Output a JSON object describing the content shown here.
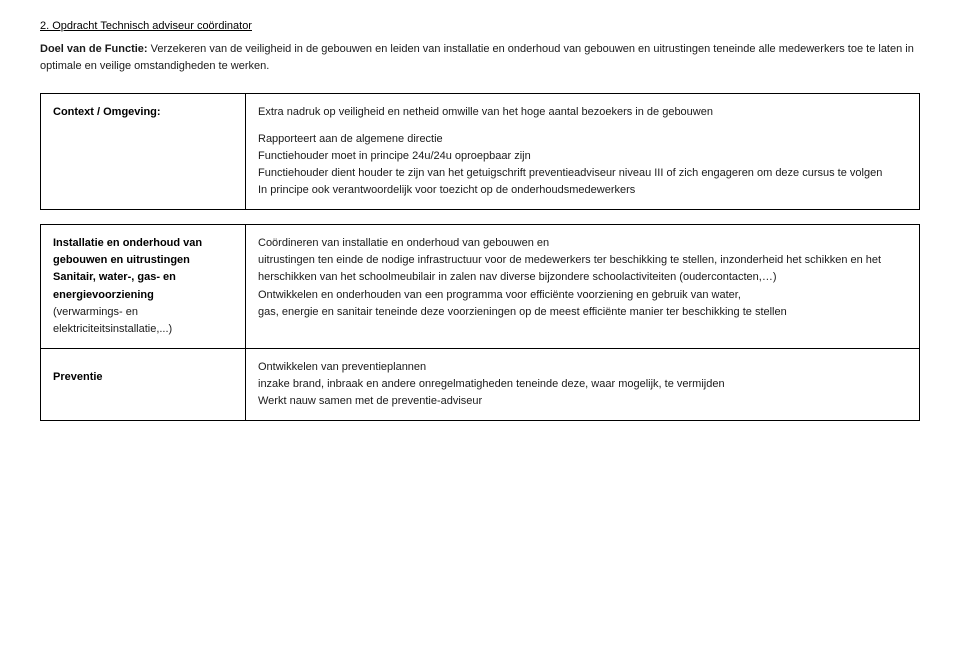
{
  "title": "2.  Opdracht Technisch adviseur coördinator",
  "intro": {
    "label": "Doel van de Functie: ",
    "text": "Verzekeren van de veiligheid in de gebouwen en leiden van installatie en onderhoud van gebouwen en  uitrustingen teneinde alle medewerkers toe te laten in optimale en veilige omstandigheden te werken."
  },
  "context": {
    "label": "Context / Omgeving:",
    "line1": "Extra nadruk op veiligheid en netheid omwille van het hoge aantal bezoekers in de gebouwen",
    "line2": "Rapporteert aan de algemene directie",
    "line3": "Functiehouder moet in principe 24u/24u oproepbaar zijn",
    "line4": "Functiehouder dient houder te zijn van het getuigschrift preventieadviseur niveau III of zich engageren om deze cursus te volgen",
    "line5": "In principe ook verantwoordelijk voor toezicht op de onderhoudsmedewerkers"
  },
  "sec1": {
    "leftA": "Installatie en onderhoud van gebouwen en uitrustingen",
    "leftB": "Sanitair, water-, gas- en energievoorziening",
    "leftC": "(verwarmings- en elektriciteitsinstallatie,...)",
    "rightA": "Coördineren van installatie en onderhoud van gebouwen en",
    "rightB": "uitrustingen ten einde de nodige infrastructuur voor de medewerkers ter beschikking te stellen, inzonderheid  het schikken en het herschikken van het schoolmeubilair in zalen nav diverse bijzondere schoolactiviteiten (oudercontacten,…)",
    "rightC": "Ontwikkelen en onderhouden van een programma voor efficiënte voorziening en gebruik van water,",
    "rightD": "gas, energie en sanitair teneinde deze voorzieningen op de meest efficiënte manier ter beschikking te stellen"
  },
  "sec2": {
    "left": "Preventie",
    "rightA": "Ontwikkelen van preventieplannen",
    "rightB": " inzake brand, inbraak en andere onregelmatigheden teneinde deze, waar mogelijk, te vermijden",
    "rightC": "Werkt nauw samen met de preventie-adviseur"
  }
}
